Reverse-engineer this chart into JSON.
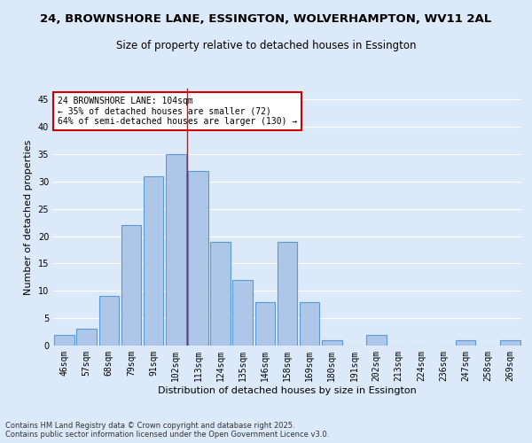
{
  "title1": "24, BROWNSHORE LANE, ESSINGTON, WOLVERHAMPTON, WV11 2AL",
  "title2": "Size of property relative to detached houses in Essington",
  "xlabel": "Distribution of detached houses by size in Essington",
  "ylabel": "Number of detached properties",
  "categories": [
    "46sqm",
    "57sqm",
    "68sqm",
    "79sqm",
    "91sqm",
    "102sqm",
    "113sqm",
    "124sqm",
    "135sqm",
    "146sqm",
    "158sqm",
    "169sqm",
    "180sqm",
    "191sqm",
    "202sqm",
    "213sqm",
    "224sqm",
    "236sqm",
    "247sqm",
    "258sqm",
    "269sqm"
  ],
  "values": [
    2,
    3,
    9,
    22,
    31,
    35,
    32,
    19,
    12,
    8,
    19,
    8,
    1,
    0,
    2,
    0,
    0,
    0,
    1,
    0,
    1
  ],
  "bar_color": "#aec6e8",
  "bar_edge_color": "#5b9bd5",
  "bg_color": "#dce9f8",
  "grid_color": "#ffffff",
  "red_line_x": 5.5,
  "annotation_text": "24 BROWNSHORE LANE: 104sqm\n← 35% of detached houses are smaller (72)\n64% of semi-detached houses are larger (130) →",
  "annotation_box_color": "#ffffff",
  "annotation_box_edge": "#cc0000",
  "ylim": [
    0,
    47
  ],
  "yticks": [
    0,
    5,
    10,
    15,
    20,
    25,
    30,
    35,
    40,
    45
  ],
  "footnote1": "Contains HM Land Registry data © Crown copyright and database right 2025.",
  "footnote2": "Contains public sector information licensed under the Open Government Licence v3.0.",
  "title1_fontsize": 9.5,
  "title2_fontsize": 8.5,
  "xlabel_fontsize": 8,
  "ylabel_fontsize": 8,
  "tick_fontsize": 7,
  "annot_fontsize": 7
}
